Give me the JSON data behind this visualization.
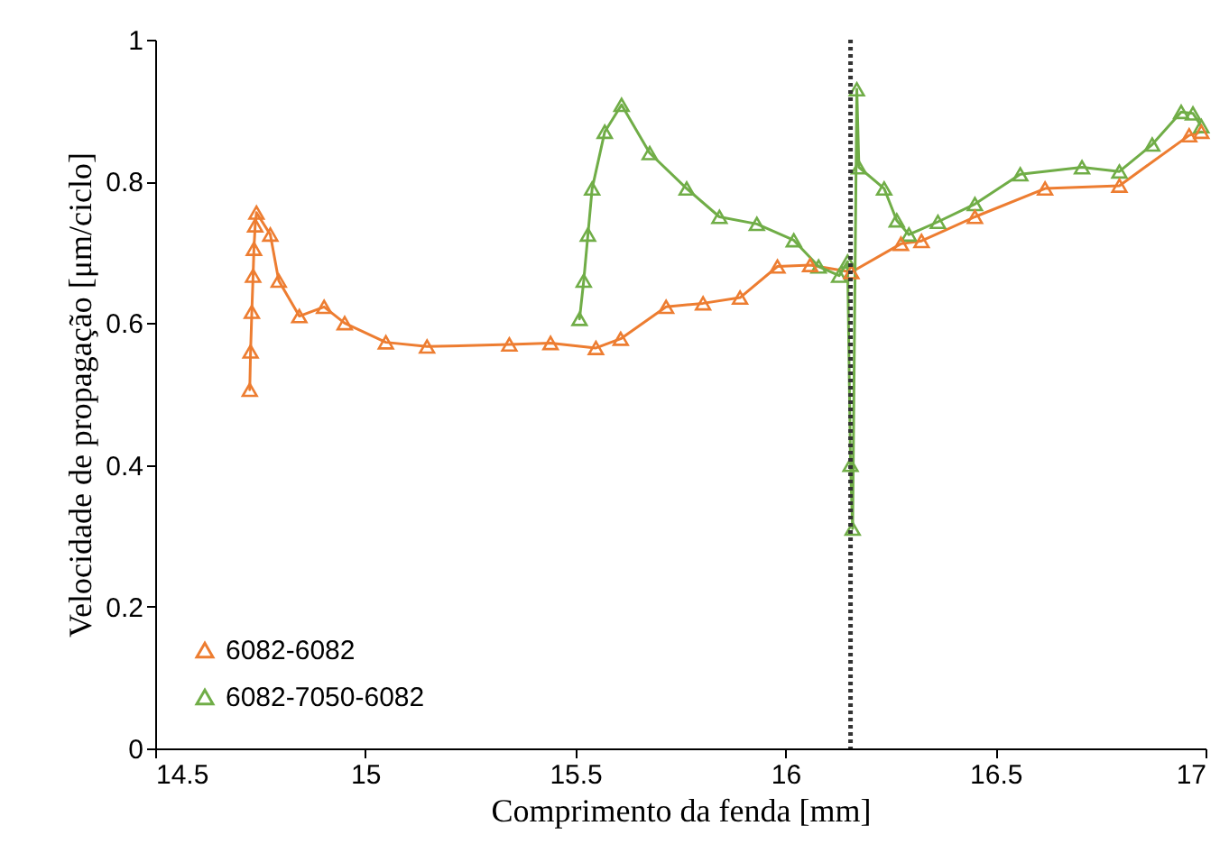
{
  "chart_data": {
    "type": "line",
    "xlabel": "Comprimento da fenda [mm]",
    "ylabel": "Velocidade de propagação [μm/ciclo]",
    "xlim": [
      14.5,
      17
    ],
    "xticks": [
      14.5,
      15,
      15.5,
      16,
      16.5,
      17
    ],
    "ylim": [
      0,
      1
    ],
    "yticks": [
      0,
      0.2,
      0.4,
      0.6,
      0.8,
      1
    ],
    "marker": "triangle",
    "legend": "bottom left",
    "grid": false,
    "ref_lines": [
      {
        "axis": "x",
        "value": 16.155,
        "color": "#333333",
        "line_style": "dotted"
      }
    ],
    "series": [
      {
        "name": "6082-6082",
        "color": "#ed7d31",
        "x": [
          14.725,
          14.727,
          14.73,
          14.733,
          14.735,
          14.738,
          14.741,
          14.774,
          14.794,
          14.843,
          14.902,
          14.951,
          15.049,
          15.147,
          15.343,
          15.441,
          15.549,
          15.608,
          15.716,
          15.804,
          15.892,
          15.981,
          16.059,
          16.157,
          16.275,
          16.324,
          16.451,
          16.618,
          16.795,
          16.961,
          16.99
        ],
        "values": [
          0.506,
          0.56,
          0.616,
          0.667,
          0.705,
          0.738,
          0.756,
          0.725,
          0.66,
          0.61,
          0.623,
          0.6,
          0.573,
          0.567,
          0.57,
          0.572,
          0.565,
          0.578,
          0.623,
          0.628,
          0.636,
          0.68,
          0.682,
          0.672,
          0.712,
          0.716,
          0.75,
          0.79,
          0.794,
          0.865,
          0.87
        ]
      },
      {
        "name": "6082-7050-6082",
        "color": "#70ad47",
        "x": [
          15.51,
          15.52,
          15.53,
          15.54,
          15.57,
          15.61,
          15.677,
          15.765,
          15.843,
          15.932,
          16.02,
          16.079,
          16.128,
          16.148,
          16.155,
          16.16,
          16.17,
          16.175,
          16.235,
          16.265,
          16.294,
          16.363,
          16.451,
          16.559,
          16.706,
          16.795,
          16.873,
          16.942,
          16.97,
          16.99
        ],
        "values": [
          0.606,
          0.66,
          0.725,
          0.79,
          0.87,
          0.908,
          0.84,
          0.79,
          0.75,
          0.74,
          0.717,
          0.68,
          0.667,
          0.687,
          0.4,
          0.31,
          0.93,
          0.82,
          0.79,
          0.745,
          0.725,
          0.743,
          0.768,
          0.81,
          0.82,
          0.814,
          0.852,
          0.898,
          0.896,
          0.878
        ]
      }
    ]
  }
}
